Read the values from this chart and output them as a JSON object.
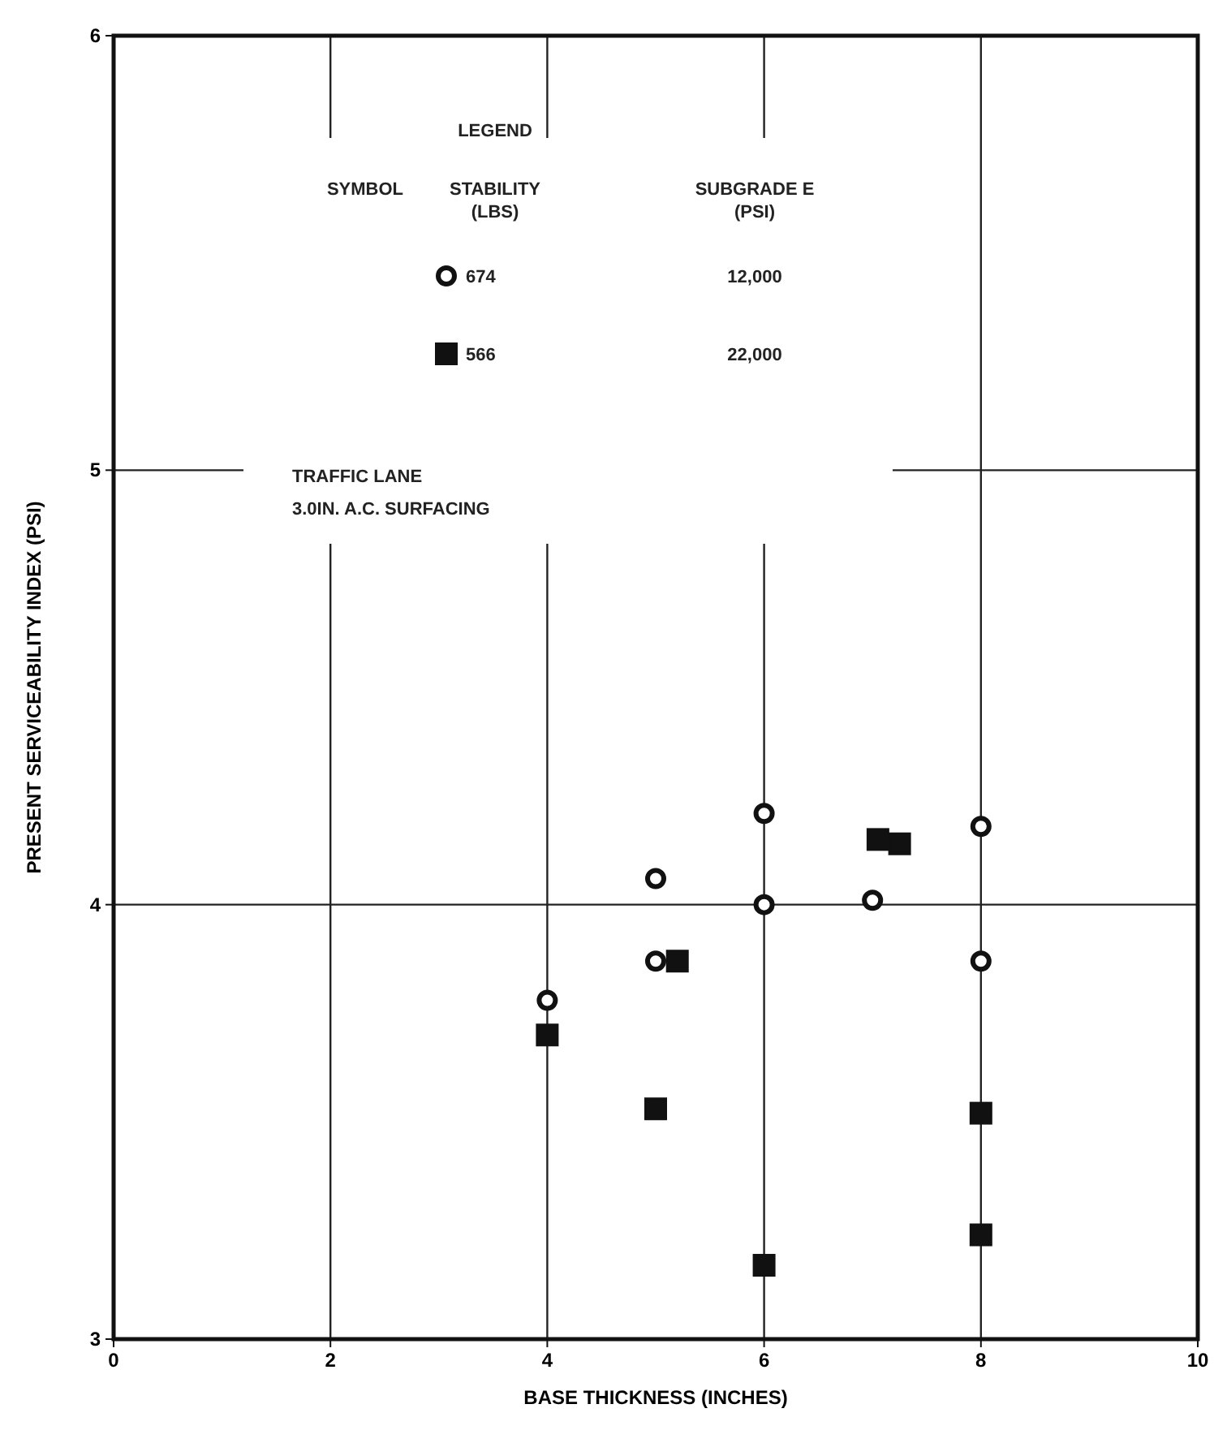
{
  "chart_data": {
    "type": "scatter",
    "xlabel": "BASE THICKNESS (INCHES)",
    "ylabel": "PRESENT SERVICEABILITY INDEX (PSI)",
    "xlim": [
      0,
      10
    ],
    "ylim": [
      3,
      6
    ],
    "xticks": [
      0,
      2,
      4,
      6,
      8,
      10
    ],
    "yticks": [
      3,
      4,
      5,
      6
    ],
    "grid": true,
    "legend": "top",
    "legend_title": "LEGEND",
    "series": [
      {
        "name": "674",
        "color": "#111111",
        "marker": "circle",
        "x": [
          4,
          5,
          5,
          6,
          6,
          7,
          8,
          8
        ],
        "values": [
          3.78,
          4.06,
          3.87,
          4.21,
          4.0,
          4.01,
          4.18,
          3.87
        ]
      },
      {
        "name": "566",
        "color": "#111111",
        "marker": "square",
        "x": [
          4,
          5.2,
          5,
          6,
          7.05,
          7.25,
          8,
          8
        ],
        "values": [
          3.7,
          3.87,
          3.53,
          3.17,
          4.15,
          4.14,
          3.52,
          3.24
        ]
      }
    ],
    "annotations": [
      "SYMBOL",
      "STABILITY\n(LBS)",
      "SUBGRADE E\n(PSI)",
      "12,000",
      "22,000",
      "TRAFFIC LANE\n3.0IN. A.C. SURFACING"
    ]
  }
}
